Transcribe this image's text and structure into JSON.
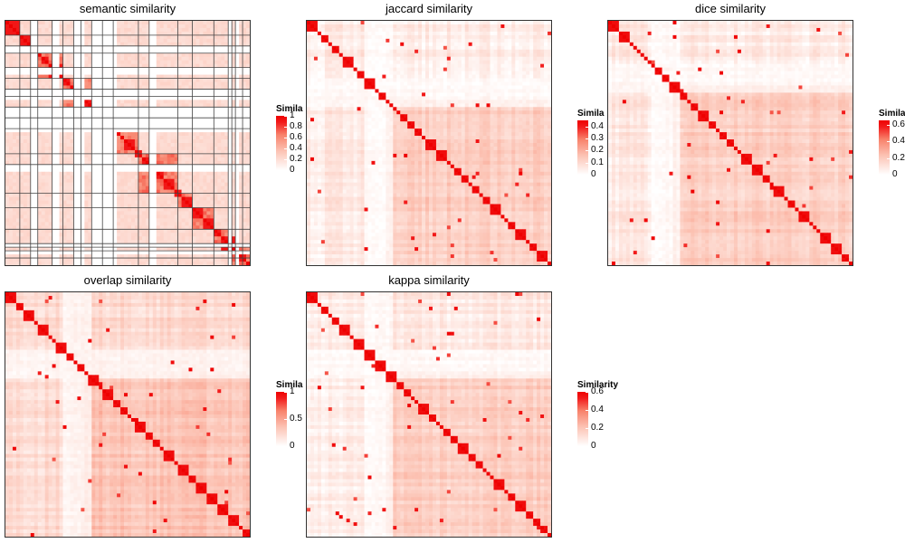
{
  "colors": {
    "low": "#ffffff",
    "mid": "#fcbba1",
    "high": "#ee0000",
    "frame": "#333333",
    "gridline": "#444444"
  },
  "panels": [
    {
      "title": "semantic similarity",
      "legend": {
        "title": "Similarity",
        "ticks": [
          "1",
          "0.8",
          "0.6",
          "0.4",
          "0.2",
          "0"
        ],
        "max": 1
      },
      "pattern": "semantic"
    },
    {
      "title": "jaccard similarity",
      "legend": {
        "title": "Similarity",
        "ticks": [
          "0.4",
          "0.3",
          "0.2",
          "0.1",
          "0"
        ],
        "max": 0.45
      },
      "pattern": "jaccard"
    },
    {
      "title": "dice similarity",
      "legend": {
        "title": "Similarity",
        "ticks": [
          "0.6",
          "0.4",
          "0.2",
          "0"
        ],
        "max": 0.65
      },
      "pattern": "dice"
    },
    {
      "title": "overlap similarity",
      "legend": {
        "title": "Similarity",
        "ticks": [
          "1",
          "0.5",
          "0"
        ],
        "max": 1
      },
      "pattern": "overlap"
    },
    {
      "title": "kappa similarity",
      "legend": {
        "title": "Similarity",
        "ticks": [
          "0.6",
          "0.4",
          "0.2",
          "0"
        ],
        "max": 0.6
      },
      "pattern": "kappa"
    }
  ],
  "chart_data": [
    {
      "type": "heatmap",
      "title": "semantic similarity",
      "legend_title": "Similarity",
      "color_range": [
        0,
        1
      ],
      "diagonal": 1,
      "clustered_blocks": true
    },
    {
      "type": "heatmap",
      "title": "jaccard similarity",
      "legend_title": "Similarity",
      "color_range": [
        0,
        0.4
      ],
      "diagonal": 1,
      "clustered_blocks": true
    },
    {
      "type": "heatmap",
      "title": "dice similarity",
      "legend_title": "Similarity",
      "color_range": [
        0,
        0.6
      ],
      "diagonal": 1,
      "clustered_blocks": true
    },
    {
      "type": "heatmap",
      "title": "overlap similarity",
      "legend_title": "Similarity",
      "color_range": [
        0,
        1
      ],
      "diagonal": 1,
      "clustered_blocks": true
    },
    {
      "type": "heatmap",
      "title": "kappa similarity",
      "legend_title": "Similarity",
      "color_range": [
        0,
        0.6
      ],
      "diagonal": 1,
      "clustered_blocks": true
    }
  ]
}
